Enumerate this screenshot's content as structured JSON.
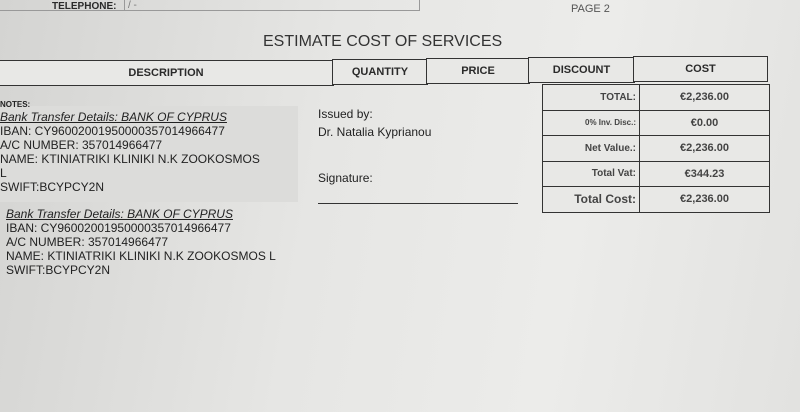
{
  "header": {
    "telephone_label": "TELEPHONE:",
    "telephone_value": "/ -",
    "page": "PAGE 2"
  },
  "title": "ESTIMATE COST OF SERVICES",
  "columns": [
    "DESCRIPTION",
    "QUANTITY",
    "PRICE",
    "DISCOUNT",
    "COST"
  ],
  "totals": [
    {
      "label": "TOTAL:",
      "value": "€2,236.00"
    },
    {
      "label": "0%  Inv. Disc.:",
      "value": "€0.00"
    },
    {
      "label": "Net Value.:",
      "value": "€2,236.00"
    },
    {
      "label": "Total Vat:",
      "value": "€344.23"
    },
    {
      "label": "Total Cost:",
      "value": "€2,236.00"
    }
  ],
  "notes": {
    "label": "NOTES:",
    "block1": {
      "heading": "Bank Transfer Details:  BANK OF CYPRUS",
      "iban": "IBAN: CY96002001950000357014966477",
      "ac": "A/C NUMBER: 357014966477",
      "name": "NAME: KTINIATRIKI KLINIKI N.K ZOOKOSMOS",
      "name2": "L",
      "swift": "SWIFT:BCYPCY2N"
    },
    "block2": {
      "heading": "Bank Transfer Details:  BANK OF CYPRUS",
      "iban": "IBAN: CY96002001950000357014966477",
      "ac": "A/C NUMBER: 357014966477",
      "name": "NAME: KTINIATRIKI KLINIKI N.K ZOOKOSMOS L",
      "swift": "SWIFT:BCYPCY2N"
    }
  },
  "issued": {
    "label": "Issued by:",
    "name": "Dr. Natalia Kyprianou",
    "signature_label": "Signature:"
  }
}
